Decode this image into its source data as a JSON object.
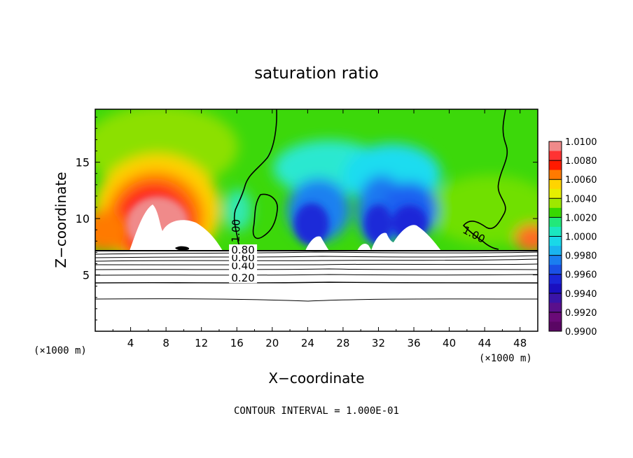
{
  "chart_data": {
    "type": "heatmap",
    "title": "saturation ratio",
    "xlabel": "X−coordinate",
    "ylabel": "Z−coordinate",
    "x_unit_left": "(×1000 m)",
    "x_unit_right": "(×1000 m)",
    "xlim": [
      0,
      50
    ],
    "ylim": [
      0,
      19.7
    ],
    "xticks": [
      4,
      8,
      12,
      16,
      20,
      24,
      28,
      32,
      36,
      40,
      44,
      48
    ],
    "yticks": [
      5,
      10,
      15
    ],
    "grid": false,
    "footer": "CONTOUR INTERVAL = 1.000E-01",
    "colorbar": {
      "labels": [
        "1.0100",
        "1.0080",
        "1.0060",
        "1.0040",
        "1.0020",
        "1.0000",
        "0.9980",
        "0.9960",
        "0.9940",
        "0.9920",
        "0.9900"
      ],
      "colors": [
        "#f08a8a",
        "#ff3333",
        "#ff1a00",
        "#ff7a00",
        "#ffd400",
        "#e6ee00",
        "#9ee800",
        "#38d800",
        "#22e87a",
        "#1ae8c0",
        "#19d8e8",
        "#1ab4f0",
        "#1a7ef0",
        "#1a50e6",
        "#1a26d8",
        "#1a0fc0",
        "#3a14a8",
        "#5a0f8c",
        "#6a0a78",
        "#5a0664"
      ]
    },
    "contour_labels": [
      {
        "text": "0.20",
        "x": 16.7,
        "z": 4.4
      },
      {
        "text": "0.40",
        "x": 16.7,
        "z": 5.5
      },
      {
        "text": "0.60",
        "x": 16.7,
        "z": 6.2
      },
      {
        "text": "0.80",
        "x": 16.7,
        "z": 6.9
      },
      {
        "text": "1.00",
        "x": 16.3,
        "z": 8.9
      },
      {
        "text": "1.00",
        "x": 42.6,
        "z": 8.3
      }
    ],
    "contour_levels_below": [
      3.0,
      4.4,
      5.3,
      5.8,
      6.2,
      6.6,
      7.0,
      7.3
    ]
  }
}
